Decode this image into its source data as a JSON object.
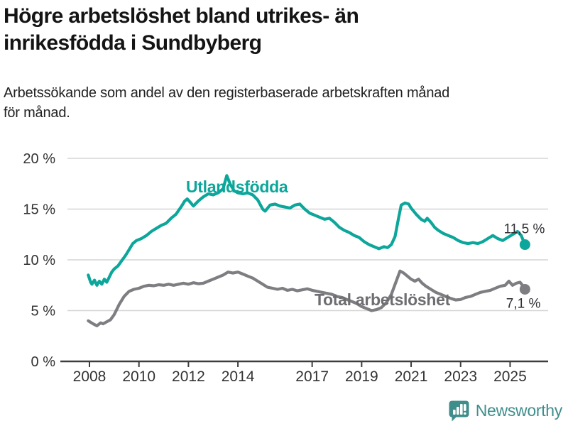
{
  "header": {
    "title": "Högre arbetslöshet bland utrikes- än\ninrikesfödda i Sundbyberg",
    "subtitle": "Arbetssökande som andel av den registerbaserade arbetskraften månad\nför månad."
  },
  "chart_data": {
    "type": "line",
    "title": "Högre arbetslöshet bland utrikes- än inrikesfödda i Sundbyberg",
    "subtitle": "Arbetssökande som andel av den registerbaserade arbetskraften månad för månad.",
    "xlabel": "",
    "ylabel": "",
    "unit": "%",
    "grid": "horizontal",
    "legend_position": "inline-labels",
    "ylim": [
      0,
      20
    ],
    "x_range": [
      2007.8,
      2026.4
    ],
    "y_ticks": [
      0,
      5,
      10,
      15,
      20
    ],
    "y_tick_labels": [
      "0 %",
      "5 %",
      "10 %",
      "15 %",
      "20 %"
    ],
    "x_ticks": [
      2008,
      2010,
      2012,
      2014,
      2017,
      2019,
      2021,
      2023,
      2025
    ],
    "x_tick_labels": [
      "2008",
      "2010",
      "2012",
      "2014",
      "2017",
      "2019",
      "2021",
      "2023",
      "2025"
    ],
    "colors": {
      "axis_text": "#333333",
      "axis_line": "#3d3d3d",
      "gridline": "#d5d5d5",
      "value_label": "#2e2e33"
    },
    "series": [
      {
        "name": "Utlandsfödda",
        "color": "#0ca69a",
        "end_label": "11,5 %",
        "end_value": 11.5,
        "points": [
          [
            2007.95,
            8.5
          ],
          [
            2008.05,
            7.8
          ],
          [
            2008.1,
            7.6
          ],
          [
            2008.2,
            8.0
          ],
          [
            2008.3,
            7.5
          ],
          [
            2008.4,
            7.9
          ],
          [
            2008.5,
            7.6
          ],
          [
            2008.6,
            8.1
          ],
          [
            2008.7,
            7.8
          ],
          [
            2008.8,
            8.3
          ],
          [
            2008.9,
            8.8
          ],
          [
            2009.0,
            9.1
          ],
          [
            2009.15,
            9.4
          ],
          [
            2009.3,
            9.9
          ],
          [
            2009.45,
            10.4
          ],
          [
            2009.6,
            11.0
          ],
          [
            2009.75,
            11.6
          ],
          [
            2009.9,
            11.9
          ],
          [
            2010.1,
            12.1
          ],
          [
            2010.3,
            12.4
          ],
          [
            2010.5,
            12.8
          ],
          [
            2010.7,
            13.1
          ],
          [
            2010.9,
            13.4
          ],
          [
            2011.1,
            13.6
          ],
          [
            2011.3,
            14.1
          ],
          [
            2011.5,
            14.5
          ],
          [
            2011.7,
            15.2
          ],
          [
            2011.85,
            15.8
          ],
          [
            2011.95,
            16.0
          ],
          [
            2012.1,
            15.6
          ],
          [
            2012.2,
            15.3
          ],
          [
            2012.4,
            15.8
          ],
          [
            2012.6,
            16.2
          ],
          [
            2012.8,
            16.5
          ],
          [
            2013.0,
            16.4
          ],
          [
            2013.2,
            16.6
          ],
          [
            2013.4,
            17.0
          ],
          [
            2013.55,
            18.3
          ],
          [
            2013.7,
            17.4
          ],
          [
            2013.85,
            16.8
          ],
          [
            2014.0,
            16.6
          ],
          [
            2014.2,
            16.5
          ],
          [
            2014.4,
            16.6
          ],
          [
            2014.6,
            16.4
          ],
          [
            2014.8,
            15.9
          ],
          [
            2015.0,
            15.0
          ],
          [
            2015.1,
            14.8
          ],
          [
            2015.3,
            15.4
          ],
          [
            2015.5,
            15.5
          ],
          [
            2015.7,
            15.3
          ],
          [
            2015.9,
            15.2
          ],
          [
            2016.1,
            15.1
          ],
          [
            2016.3,
            15.4
          ],
          [
            2016.5,
            15.5
          ],
          [
            2016.7,
            15.0
          ],
          [
            2016.9,
            14.6
          ],
          [
            2017.1,
            14.4
          ],
          [
            2017.3,
            14.2
          ],
          [
            2017.5,
            14.0
          ],
          [
            2017.7,
            14.1
          ],
          [
            2017.9,
            13.7
          ],
          [
            2018.1,
            13.2
          ],
          [
            2018.3,
            12.9
          ],
          [
            2018.5,
            12.7
          ],
          [
            2018.7,
            12.4
          ],
          [
            2018.9,
            12.2
          ],
          [
            2019.1,
            11.8
          ],
          [
            2019.3,
            11.5
          ],
          [
            2019.5,
            11.3
          ],
          [
            2019.7,
            11.1
          ],
          [
            2019.9,
            11.3
          ],
          [
            2020.05,
            11.2
          ],
          [
            2020.2,
            11.5
          ],
          [
            2020.35,
            12.3
          ],
          [
            2020.5,
            14.2
          ],
          [
            2020.6,
            15.4
          ],
          [
            2020.75,
            15.6
          ],
          [
            2020.9,
            15.5
          ],
          [
            2021.0,
            15.1
          ],
          [
            2021.2,
            14.5
          ],
          [
            2021.4,
            14.0
          ],
          [
            2021.55,
            13.8
          ],
          [
            2021.65,
            14.1
          ],
          [
            2021.8,
            13.7
          ],
          [
            2021.95,
            13.2
          ],
          [
            2022.1,
            12.9
          ],
          [
            2022.3,
            12.6
          ],
          [
            2022.5,
            12.4
          ],
          [
            2022.7,
            12.2
          ],
          [
            2022.9,
            11.9
          ],
          [
            2023.1,
            11.7
          ],
          [
            2023.3,
            11.6
          ],
          [
            2023.5,
            11.7
          ],
          [
            2023.7,
            11.6
          ],
          [
            2023.9,
            11.8
          ],
          [
            2024.1,
            12.1
          ],
          [
            2024.3,
            12.4
          ],
          [
            2024.5,
            12.1
          ],
          [
            2024.7,
            11.9
          ],
          [
            2024.9,
            12.2
          ],
          [
            2025.1,
            12.5
          ],
          [
            2025.3,
            12.8
          ],
          [
            2025.45,
            12.4
          ],
          [
            2025.6,
            11.5
          ]
        ]
      },
      {
        "name": "Total arbetslöshet",
        "color": "#7e7e82",
        "end_label": "7,1 %",
        "end_value": 7.1,
        "points": [
          [
            2007.95,
            4.0
          ],
          [
            2008.15,
            3.7
          ],
          [
            2008.3,
            3.5
          ],
          [
            2008.45,
            3.8
          ],
          [
            2008.55,
            3.7
          ],
          [
            2008.7,
            3.9
          ],
          [
            2008.85,
            4.1
          ],
          [
            2009.0,
            4.6
          ],
          [
            2009.2,
            5.6
          ],
          [
            2009.4,
            6.4
          ],
          [
            2009.6,
            6.9
          ],
          [
            2009.8,
            7.1
          ],
          [
            2010.0,
            7.2
          ],
          [
            2010.2,
            7.4
          ],
          [
            2010.4,
            7.5
          ],
          [
            2010.6,
            7.45
          ],
          [
            2010.8,
            7.55
          ],
          [
            2011.0,
            7.5
          ],
          [
            2011.2,
            7.6
          ],
          [
            2011.4,
            7.5
          ],
          [
            2011.6,
            7.6
          ],
          [
            2011.8,
            7.7
          ],
          [
            2012.0,
            7.6
          ],
          [
            2012.2,
            7.75
          ],
          [
            2012.4,
            7.65
          ],
          [
            2012.6,
            7.7
          ],
          [
            2012.8,
            7.9
          ],
          [
            2013.0,
            8.1
          ],
          [
            2013.2,
            8.3
          ],
          [
            2013.4,
            8.5
          ],
          [
            2013.6,
            8.8
          ],
          [
            2013.8,
            8.7
          ],
          [
            2014.0,
            8.8
          ],
          [
            2014.2,
            8.6
          ],
          [
            2014.4,
            8.4
          ],
          [
            2014.6,
            8.2
          ],
          [
            2014.8,
            7.9
          ],
          [
            2015.0,
            7.6
          ],
          [
            2015.2,
            7.3
          ],
          [
            2015.4,
            7.2
          ],
          [
            2015.6,
            7.1
          ],
          [
            2015.8,
            7.2
          ],
          [
            2016.0,
            7.0
          ],
          [
            2016.2,
            7.1
          ],
          [
            2016.4,
            6.95
          ],
          [
            2016.6,
            7.05
          ],
          [
            2016.8,
            7.15
          ],
          [
            2017.0,
            7.0
          ],
          [
            2017.2,
            6.9
          ],
          [
            2017.4,
            6.8
          ],
          [
            2017.6,
            6.7
          ],
          [
            2017.8,
            6.6
          ],
          [
            2018.0,
            6.4
          ],
          [
            2018.2,
            6.3
          ],
          [
            2018.4,
            6.1
          ],
          [
            2018.6,
            5.9
          ],
          [
            2018.8,
            5.7
          ],
          [
            2019.0,
            5.4
          ],
          [
            2019.2,
            5.2
          ],
          [
            2019.4,
            5.0
          ],
          [
            2019.6,
            5.1
          ],
          [
            2019.8,
            5.3
          ],
          [
            2020.0,
            5.8
          ],
          [
            2020.2,
            6.6
          ],
          [
            2020.4,
            7.9
          ],
          [
            2020.55,
            8.9
          ],
          [
            2020.7,
            8.7
          ],
          [
            2020.85,
            8.4
          ],
          [
            2021.0,
            8.1
          ],
          [
            2021.15,
            7.9
          ],
          [
            2021.3,
            8.1
          ],
          [
            2021.45,
            7.7
          ],
          [
            2021.6,
            7.4
          ],
          [
            2021.8,
            7.1
          ],
          [
            2022.0,
            6.8
          ],
          [
            2022.2,
            6.6
          ],
          [
            2022.4,
            6.4
          ],
          [
            2022.6,
            6.2
          ],
          [
            2022.8,
            6.05
          ],
          [
            2023.0,
            6.1
          ],
          [
            2023.2,
            6.3
          ],
          [
            2023.4,
            6.4
          ],
          [
            2023.6,
            6.6
          ],
          [
            2023.8,
            6.8
          ],
          [
            2024.0,
            6.9
          ],
          [
            2024.2,
            7.0
          ],
          [
            2024.4,
            7.2
          ],
          [
            2024.6,
            7.4
          ],
          [
            2024.8,
            7.5
          ],
          [
            2024.95,
            7.9
          ],
          [
            2025.1,
            7.5
          ],
          [
            2025.25,
            7.7
          ],
          [
            2025.4,
            7.8
          ],
          [
            2025.5,
            7.5
          ],
          [
            2025.6,
            7.1
          ]
        ]
      }
    ]
  },
  "footer": {
    "brand": "Newsworthy",
    "logo_icon": "bar-chart-speech-bubble-icon",
    "brand_color": "#3f8e8b"
  }
}
